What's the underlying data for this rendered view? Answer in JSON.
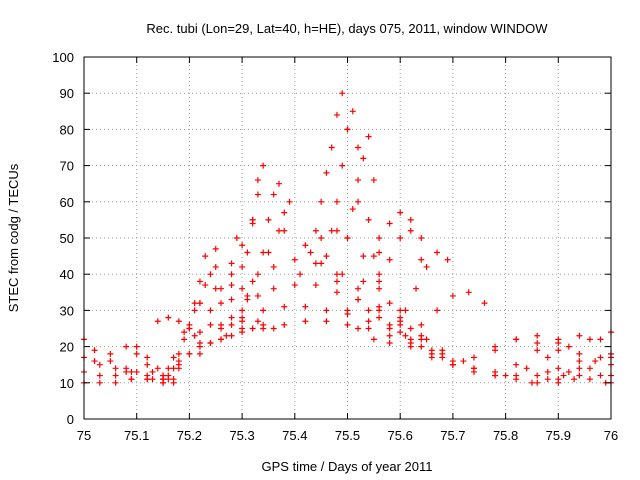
{
  "chart_data": {
    "type": "scatter",
    "title": "Rec. tubi (Lon=29, Lat=40, h=HE), days 075, 2011, window WINDOW",
    "xlabel": "GPS time / Days of year 2011",
    "ylabel": "STEC from codg / TECUs",
    "xlim": [
      75,
      76
    ],
    "ylim": [
      0,
      100
    ],
    "xticks": [
      75,
      75.1,
      75.2,
      75.3,
      75.4,
      75.5,
      75.6,
      75.7,
      75.8,
      75.9,
      76
    ],
    "xtick_labels": [
      "75",
      "75.1",
      "75.2",
      "75.3",
      "75.4",
      "75.5",
      "75.6",
      "75.7",
      "75.8",
      "75.9",
      "76"
    ],
    "yticks": [
      0,
      10,
      20,
      30,
      40,
      50,
      60,
      70,
      80,
      90,
      100
    ],
    "ytick_labels": [
      "0",
      "10",
      "20",
      "30",
      "40",
      "50",
      "60",
      "70",
      "80",
      "90",
      "100"
    ],
    "grid": true,
    "marker": "+",
    "color": "#ff0000",
    "series": [
      {
        "x": [
          75.0,
          75.02,
          75.05,
          75.08,
          75.1,
          75.13
        ],
        "y": [
          22,
          19,
          16,
          14,
          13,
          13
        ]
      },
      {
        "x": [
          75.0,
          75.03,
          75.06,
          75.09,
          75.12,
          75.15
        ],
        "y": [
          17,
          15,
          14,
          13,
          12,
          11
        ]
      },
      {
        "x": [
          75.0,
          75.03,
          75.06,
          75.09,
          75.12,
          75.15,
          75.17
        ],
        "y": [
          13,
          12,
          12,
          11,
          11,
          10,
          11
        ]
      },
      {
        "x": [
          75.0,
          75.03,
          75.06,
          75.09,
          75.12,
          75.15,
          75.17
        ],
        "y": [
          10,
          10,
          10,
          11,
          11,
          10,
          10
        ]
      },
      {
        "x": [
          75.02,
          75.05,
          75.08,
          75.1,
          75.12,
          75.15
        ],
        "y": [
          16,
          18,
          20,
          18,
          15,
          12
        ]
      },
      {
        "x": [
          75.08,
          75.1,
          75.12,
          75.14,
          75.16
        ],
        "y": [
          13,
          20,
          17,
          14,
          12
        ]
      },
      {
        "x": [
          75.13,
          75.16,
          75.2,
          75.24,
          75.28,
          75.32,
          75.36
        ],
        "y": [
          11,
          14,
          18,
          21,
          23,
          25,
          25
        ]
      },
      {
        "x": [
          75.14,
          75.16,
          75.18,
          75.2,
          75.21
        ],
        "y": [
          27,
          28,
          27,
          25,
          23
        ]
      },
      {
        "x": [
          75.15,
          75.18,
          75.22,
          75.26,
          75.3,
          75.34
        ],
        "y": [
          11,
          14,
          18,
          22,
          25,
          26
        ]
      },
      {
        "x": [
          75.15,
          75.18,
          75.22,
          75.26,
          75.3,
          75.33
        ],
        "y": [
          11,
          15,
          21,
          25,
          27,
          27
        ]
      },
      {
        "x": [
          75.16,
          75.18,
          75.2,
          75.22,
          75.25,
          75.28,
          75.31
        ],
        "y": [
          11,
          18,
          26,
          32,
          36,
          37,
          34
        ]
      },
      {
        "x": [
          75.15,
          75.17,
          75.19,
          75.21,
          75.22,
          75.23
        ],
        "y": [
          12,
          17,
          24,
          32,
          38,
          45
        ]
      },
      {
        "x": [
          75.17,
          75.19,
          75.21,
          75.23,
          75.25
        ],
        "y": [
          14,
          22,
          30,
          37,
          42
        ]
      },
      {
        "x": [
          75.18,
          75.2,
          75.22,
          75.24,
          75.25
        ],
        "y": [
          16,
          25,
          32,
          40,
          47
        ]
      },
      {
        "x": [
          75.2,
          75.22,
          75.24,
          75.26,
          75.28,
          75.29
        ],
        "y": [
          18,
          24,
          30,
          36,
          43,
          50
        ]
      },
      {
        "x": [
          75.22,
          75.24,
          75.26,
          75.28,
          75.3,
          75.32
        ],
        "y": [
          20,
          26,
          32,
          40,
          48,
          55
        ]
      },
      {
        "x": [
          75.24,
          75.26,
          75.28,
          75.3,
          75.32,
          75.33
        ],
        "y": [
          21,
          26,
          33,
          42,
          54,
          62
        ]
      },
      {
        "x": [
          75.26,
          75.28,
          75.3,
          75.31,
          75.32,
          75.33,
          75.34
        ],
        "y": [
          22,
          28,
          36,
          46,
          55,
          66,
          70
        ]
      },
      {
        "x": [
          75.27,
          75.3,
          75.32,
          75.34,
          75.35,
          75.36,
          75.37
        ],
        "y": [
          23,
          30,
          38,
          46,
          55,
          62,
          65
        ]
      },
      {
        "x": [
          75.28,
          75.31,
          75.33,
          75.35,
          75.37,
          75.38,
          75.39
        ],
        "y": [
          26,
          33,
          40,
          46,
          52,
          57,
          60
        ]
      },
      {
        "x": [
          75.3,
          75.34,
          75.38,
          75.42,
          75.46,
          75.5,
          75.54,
          75.58,
          75.62,
          75.66,
          75.7,
          75.74,
          75.78
        ],
        "y": [
          24,
          25,
          26,
          27,
          27,
          26,
          25,
          23,
          21,
          18,
          15,
          13,
          12
        ]
      },
      {
        "x": [
          75.3,
          75.34,
          75.38,
          75.42,
          75.46,
          75.5,
          75.54,
          75.58,
          75.62,
          75.66,
          75.7
        ],
        "y": [
          28,
          30,
          31,
          31,
          30,
          29,
          27,
          25,
          22,
          19,
          16
        ]
      },
      {
        "x": [
          75.33,
          75.36,
          75.4,
          75.44,
          75.48,
          75.52,
          75.56,
          75.6,
          75.64,
          75.68,
          75.72
        ],
        "y": [
          34,
          36,
          37,
          37,
          35,
          33,
          30,
          27,
          23,
          19,
          16
        ]
      },
      {
        "x": [
          75.36,
          75.4,
          75.44,
          75.48,
          75.52,
          75.56,
          75.6,
          75.64,
          75.68
        ],
        "y": [
          42,
          44,
          43,
          40,
          36,
          31,
          26,
          22,
          18
        ]
      },
      {
        "x": [
          75.38,
          75.42,
          75.45,
          75.48,
          75.52,
          75.56,
          75.6,
          75.64,
          75.68
        ],
        "y": [
          52,
          48,
          43,
          38,
          33,
          28,
          24,
          20,
          17
        ]
      },
      {
        "x": [
          75.41,
          75.43,
          75.44,
          75.45,
          75.46,
          75.47,
          75.48,
          75.49,
          75.5,
          75.52,
          75.55,
          75.6
        ],
        "y": [
          40,
          46,
          52,
          60,
          68,
          75,
          84,
          90,
          80,
          60,
          45,
          30
        ]
      },
      {
        "x": [
          75.46,
          75.47,
          75.48,
          75.49,
          75.5,
          75.51,
          75.52,
          75.54,
          75.56
        ],
        "y": [
          45,
          52,
          60,
          70,
          80,
          85,
          75,
          55,
          40
        ]
      },
      {
        "x": [
          75.49,
          75.5,
          75.51,
          75.52,
          75.53,
          75.54,
          75.55,
          75.56
        ],
        "y": [
          40,
          50,
          58,
          66,
          72,
          78,
          66,
          50
        ]
      },
      {
        "x": [
          75.45,
          75.48,
          75.5,
          75.53,
          75.56,
          75.58,
          75.6,
          75.62,
          75.65
        ],
        "y": [
          50,
          52,
          50,
          45,
          38,
          32,
          28,
          25,
          22
        ]
      },
      {
        "x": [
          75.5,
          75.53,
          75.56,
          75.58,
          75.6,
          75.62,
          75.64
        ],
        "y": [
          30,
          38,
          46,
          54,
          57,
          52,
          44
        ]
      },
      {
        "x": [
          75.52,
          75.54,
          75.56,
          75.58,
          75.6,
          75.62,
          75.64
        ],
        "y": [
          25,
          30,
          36,
          44,
          50,
          55,
          50
        ]
      },
      {
        "x": [
          75.55,
          75.58,
          75.61,
          75.63,
          75.65,
          75.67,
          75.69
        ],
        "y": [
          22,
          26,
          30,
          36,
          42,
          46,
          44
        ]
      },
      {
        "x": [
          75.58,
          75.61,
          75.64,
          75.67,
          75.7,
          75.73,
          75.76
        ],
        "y": [
          21,
          23,
          26,
          30,
          34,
          35,
          32
        ]
      },
      {
        "x": [
          75.62,
          75.66,
          75.7,
          75.74,
          75.78,
          75.82
        ],
        "y": [
          20,
          17,
          15,
          14,
          13,
          12
        ]
      },
      {
        "x": [
          75.7,
          75.74,
          75.78,
          75.82,
          75.86,
          75.9
        ],
        "y": [
          15,
          17,
          20,
          22,
          21,
          19
        ]
      },
      {
        "x": [
          75.74,
          75.78,
          75.82,
          75.86,
          75.9,
          75.94
        ],
        "y": [
          14,
          19,
          22,
          23,
          21,
          18
        ]
      },
      {
        "x": [
          75.78,
          75.82,
          75.86,
          75.9,
          75.94,
          75.98
        ],
        "y": [
          12,
          15,
          19,
          22,
          23,
          22
        ]
      },
      {
        "x": [
          75.8,
          75.84,
          75.88,
          75.92,
          75.96,
          76.0
        ],
        "y": [
          12,
          14,
          17,
          20,
          22,
          24
        ]
      },
      {
        "x": [
          75.82,
          75.86,
          75.9,
          75.94,
          75.98,
          76.0
        ],
        "y": [
          11,
          12,
          14,
          16,
          17,
          18
        ]
      },
      {
        "x": [
          75.85,
          75.88,
          75.91,
          75.94,
          75.97,
          76.0
        ],
        "y": [
          10,
          11,
          12,
          14,
          16,
          17
        ]
      },
      {
        "x": [
          75.86,
          75.9,
          75.94,
          75.98,
          76.0
        ],
        "y": [
          10,
          11,
          12,
          12,
          12
        ]
      },
      {
        "x": [
          75.88,
          75.92,
          75.96,
          76.0
        ],
        "y": [
          13,
          13,
          14,
          15
        ]
      },
      {
        "x": [
          75.9,
          75.93,
          75.96,
          75.99,
          76.0
        ],
        "y": [
          10,
          11,
          11,
          10,
          10
        ]
      }
    ]
  }
}
